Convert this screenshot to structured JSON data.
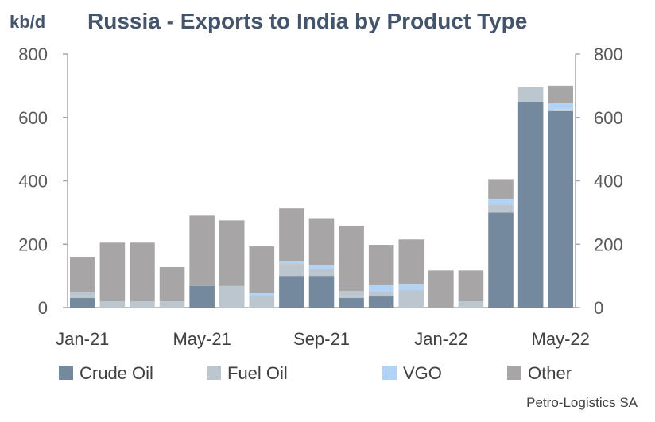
{
  "unit_label": "kb/d",
  "source": "Petro-Logistics SA",
  "colors": {
    "Crude Oil": "#74889e",
    "Fuel Oil": "#bcc6cf",
    "VGO": "#b2d3f5",
    "Other": "#a8a5a6"
  },
  "chart_data": {
    "type": "bar",
    "stacked": true,
    "title": "Russia - Exports to India by Product Type",
    "ylabel": "kb/d",
    "ylim": [
      0,
      800
    ],
    "yticks": [
      0,
      200,
      400,
      600,
      800
    ],
    "secondary_yticks": [
      0,
      200,
      400,
      600,
      800
    ],
    "categories": [
      "Jan-21",
      "Feb-21",
      "Mar-21",
      "Apr-21",
      "May-21",
      "Jun-21",
      "Jul-21",
      "Aug-21",
      "Sep-21",
      "Oct-21",
      "Nov-21",
      "Dec-21",
      "Jan-22",
      "Feb-22",
      "Mar-22",
      "Apr-22",
      "May-22"
    ],
    "x_tick_labels": [
      "Jan-21",
      "May-21",
      "Sep-21",
      "Jan-22",
      "May-22"
    ],
    "legend": [
      "Crude Oil",
      "Fuel Oil",
      "VGO",
      "Other"
    ],
    "legend_position": "bottom",
    "series": [
      {
        "name": "Crude Oil",
        "values": [
          30,
          0,
          0,
          0,
          68,
          0,
          0,
          100,
          100,
          30,
          35,
          0,
          0,
          0,
          300,
          650,
          620
        ]
      },
      {
        "name": "Fuel Oil",
        "values": [
          20,
          20,
          20,
          20,
          0,
          68,
          35,
          40,
          22,
          22,
          15,
          55,
          0,
          20,
          25,
          45,
          5
        ]
      },
      {
        "name": "VGO",
        "values": [
          0,
          0,
          0,
          0,
          0,
          0,
          10,
          5,
          12,
          0,
          22,
          20,
          0,
          0,
          18,
          0,
          20
        ]
      },
      {
        "name": "Other",
        "values": [
          110,
          185,
          185,
          108,
          222,
          207,
          148,
          168,
          148,
          206,
          126,
          140,
          117,
          97,
          62,
          0,
          55
        ]
      }
    ]
  }
}
